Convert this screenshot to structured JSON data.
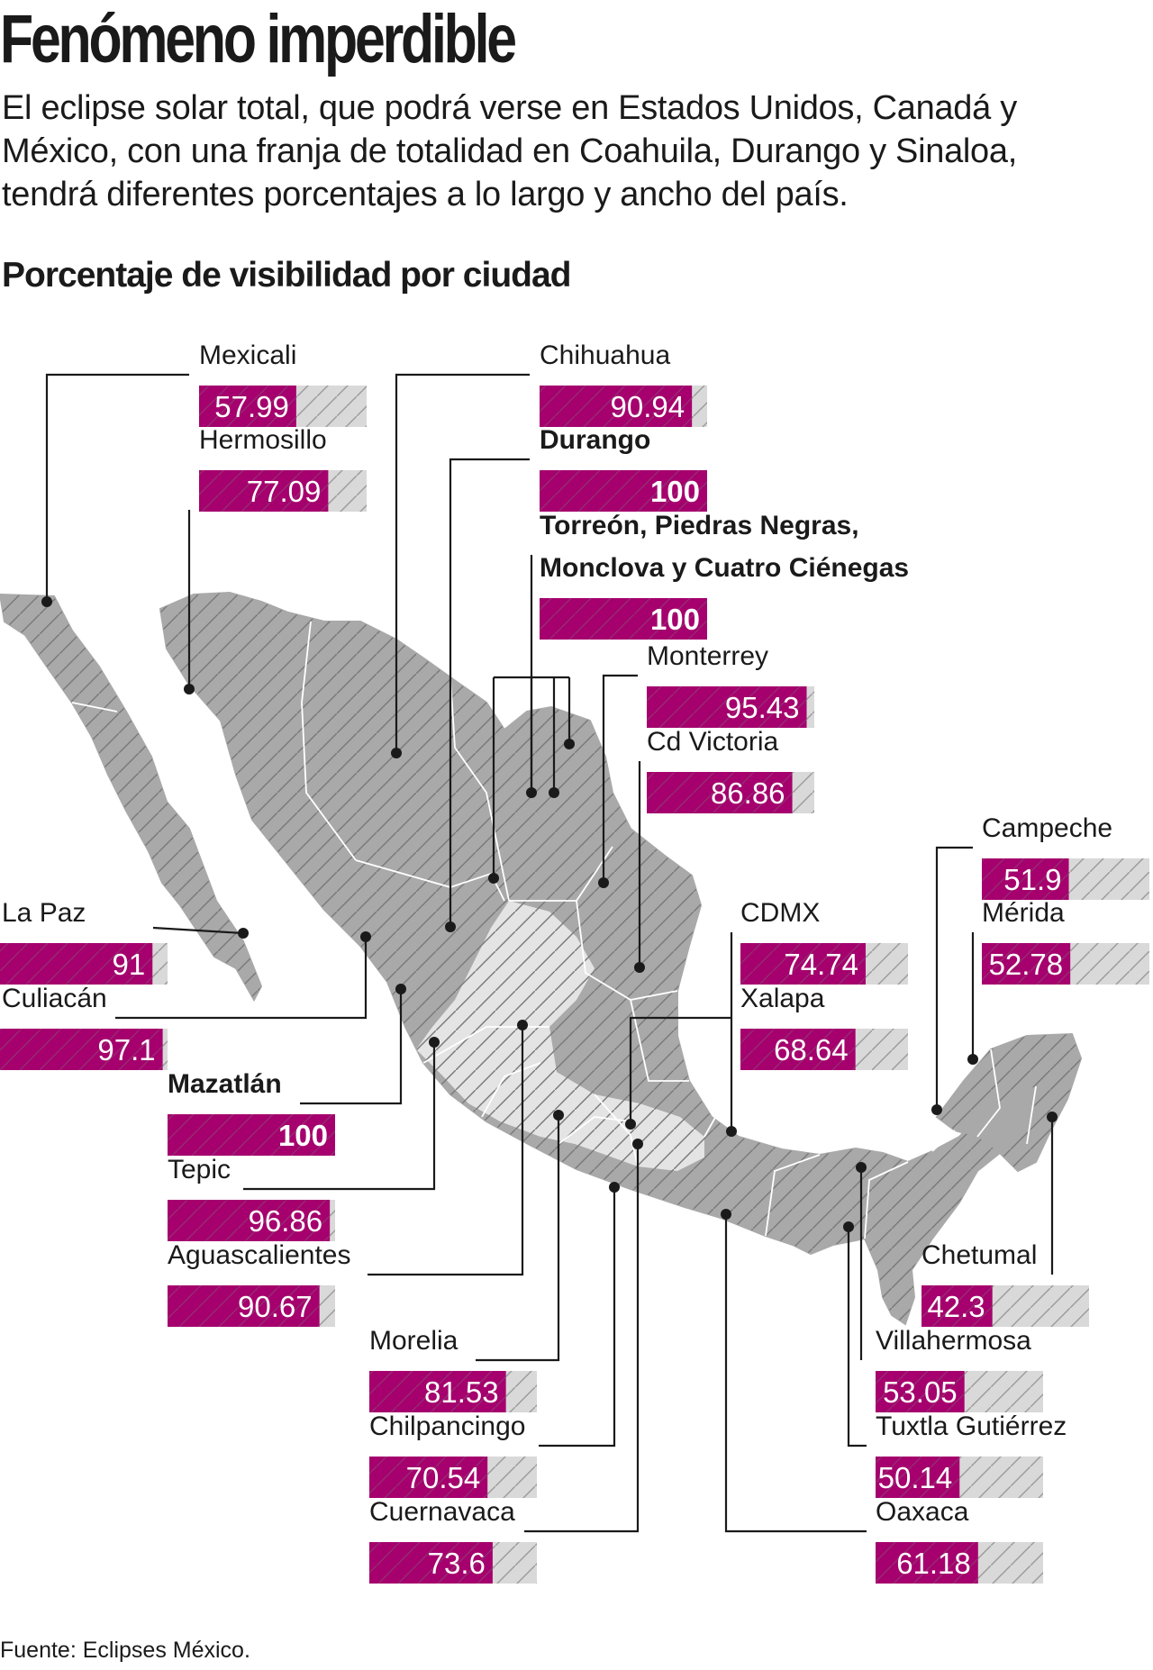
{
  "headline": "Fenómeno imperdible",
  "intro": "El eclipse solar total, que podrá verse en Estados Unidos, Canadá y México, con una franja de totalidad en Coahuila, Durango y Sinaloa, tendrá diferentes porcentajes a lo largo y ancho del país.",
  "subtitle": "Porcentaje de visibilidad por ciudad",
  "source": "Fuente: Eclipses México.",
  "colors": {
    "bar_fill": "#a5006d",
    "bar_track": "#d9d9d9",
    "map_fill": "#a9a9a9",
    "map_totality": "#e4e4e4",
    "hatch": "#7a7a7a",
    "text": "#1a1a1a"
  },
  "chart_data": {
    "type": "bar",
    "orientation": "horizontal",
    "title": "Porcentaje de visibilidad por ciudad",
    "xlim": [
      0,
      100
    ],
    "grid": false,
    "legend": "none",
    "categories": [
      "Mexicali",
      "Hermosillo",
      "Chihuahua",
      "Durango",
      "Torreón, Piedras Negras, Monclova y Cuatro Ciénegas",
      "Monterrey",
      "Cd Victoria",
      "Campeche",
      "Mérida",
      "La Paz",
      "CDMX",
      "Culiacán",
      "Xalapa",
      "Mazatlán",
      "Tepic",
      "Aguascalientes",
      "Chetumal",
      "Morelia",
      "Villahermosa",
      "Chilpancingo",
      "Tuxtla Gutiérrez",
      "Cuernavaca",
      "Oaxaca"
    ],
    "values": [
      57.99,
      77.09,
      90.94,
      100,
      100,
      95.43,
      86.86,
      51.9,
      52.78,
      91,
      74.74,
      97.1,
      68.64,
      100,
      96.86,
      90.67,
      42.3,
      81.53,
      53.05,
      70.54,
      50.14,
      73.6,
      61.18
    ],
    "value_labels": [
      "57.99",
      "77.09",
      "90.94",
      "100",
      "100",
      "95.43",
      "86.86",
      "51.9",
      "52.78",
      "91",
      "74.74",
      "97.1",
      "68.64",
      "100",
      "96.86",
      "90.67",
      "42.3",
      "81.53",
      "53.05",
      "70.54",
      "50.14",
      "73.6",
      "61.18"
    ],
    "highlighted": [
      "Durango",
      "Torreón, Piedras Negras, Monclova y Cuatro Ciénegas",
      "Mazatlán"
    ]
  }
}
